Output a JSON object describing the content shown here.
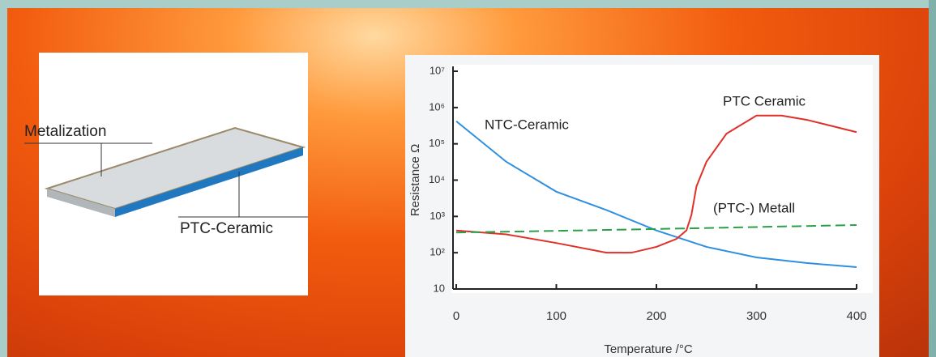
{
  "diagram": {
    "labels": [
      "Metalization",
      "PTC-Ceramic"
    ]
  },
  "chart_data": {
    "type": "line",
    "x_label": "Temperature /°C",
    "y_label": "Resistance Ω",
    "y_log_scale": true,
    "xlim": [
      0,
      400
    ],
    "xticks": [
      0,
      100,
      200,
      300,
      400
    ],
    "ylim": [
      10,
      10000000
    ],
    "yticks": [
      10,
      {
        "value": 100,
        "label": "10²"
      },
      {
        "value": 1000,
        "label": "10³"
      },
      {
        "value": 10000,
        "label": "10⁴"
      },
      {
        "value": 100000,
        "label": "10⁵"
      },
      {
        "value": 1000000,
        "label": "10⁶"
      },
      {
        "value": 10000000,
        "label": "10⁷"
      }
    ],
    "series": [
      {
        "name": "NTC-Ceramic",
        "color": "#2f8fe0",
        "line_style": "solid",
        "x": [
          0,
          50,
          100,
          150,
          200,
          250,
          300,
          350,
          400
        ],
        "values": [
          420000,
          32000,
          4800,
          1500,
          410,
          145,
          74,
          52,
          40
        ]
      },
      {
        "name": "PTC Ceramic",
        "color": "#e0302a",
        "line_style": "solid",
        "x": [
          0,
          50,
          100,
          150,
          175,
          200,
          220,
          230,
          235,
          240,
          250,
          270,
          300,
          325,
          350,
          400
        ],
        "values": [
          410,
          320,
          185,
          100,
          100,
          145,
          240,
          410,
          1100,
          6700,
          32000,
          190000,
          600000,
          600000,
          460000,
          210000
        ]
      },
      {
        "name": "(PTC-) Metall",
        "color": "#2aa048",
        "line_style": "dashed",
        "x": [
          0,
          100,
          200,
          300,
          400
        ],
        "values": [
          360,
          400,
          450,
          510,
          580
        ]
      }
    ]
  }
}
